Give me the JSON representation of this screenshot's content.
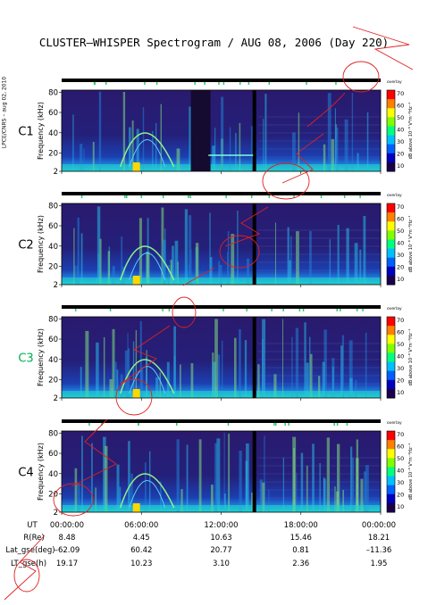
{
  "title": "CLUSTER–WHISPER Spectrogram / AUG 08, 2006 (Day 220)",
  "side_note": "LPCE/CNRS – aug 02, 2010",
  "ylabel": "Frequency (kHz)",
  "colorbar": {
    "label": "dB above 10⁻⁸ V²m⁻²Hz⁻¹",
    "top_note": "overlay",
    "ticks": [
      "70",
      "60",
      "50",
      "40",
      "30",
      "20",
      "10"
    ],
    "colors": [
      "#ff0000",
      "#ff7f00",
      "#ffff00",
      "#7fff00",
      "#00ff7f",
      "#00bfff",
      "#0060ff",
      "#0000c0",
      "#1a004a"
    ]
  },
  "panels": [
    {
      "label": "C1",
      "label_color": "#000000"
    },
    {
      "label": "C2",
      "label_color": "#000000"
    },
    {
      "label": "C3",
      "label_color": "#00b050"
    },
    {
      "label": "C4",
      "label_color": "#000000"
    }
  ],
  "ephemeris": {
    "rows": [
      {
        "label": "UT",
        "values": [
          "00:00:00",
          "06:00:00",
          "12:00:00",
          "18:00:00",
          "00:00:00"
        ]
      },
      {
        "label": "R(Re)",
        "values": [
          "8.48",
          "4.45",
          "10.63",
          "15.46",
          "18.21"
        ]
      },
      {
        "label": "Lat_gse(deg)",
        "values": [
          "–62.09",
          "60.42",
          "20.77",
          "0.81",
          "–11.36"
        ]
      },
      {
        "label": "LT_gse(h)",
        "values": [
          "19.17",
          "10.23",
          "3.10",
          "2.36",
          "1.95"
        ]
      }
    ]
  },
  "chart_data": [
    {
      "type": "heatmap",
      "spacecraft": "C1",
      "x": [
        "00:00:00",
        "06:00:00",
        "12:00:00",
        "18:00:00",
        "00:00:00"
      ],
      "y_ticks": [
        2,
        20,
        40,
        60,
        80
      ],
      "ylim": [
        2,
        82
      ],
      "zlim": [
        10,
        70
      ]
    },
    {
      "type": "heatmap",
      "spacecraft": "C2",
      "x": [
        "00:00:00",
        "06:00:00",
        "12:00:00",
        "18:00:00",
        "00:00:00"
      ],
      "y_ticks": [
        2,
        20,
        40,
        60,
        80
      ],
      "ylim": [
        2,
        82
      ],
      "zlim": [
        10,
        70
      ]
    },
    {
      "type": "heatmap",
      "spacecraft": "C3",
      "x": [
        "00:00:00",
        "06:00:00",
        "12:00:00",
        "18:00:00",
        "00:00:00"
      ],
      "y_ticks": [
        2,
        20,
        40,
        60,
        80
      ],
      "ylim": [
        2,
        82
      ],
      "zlim": [
        10,
        70
      ]
    },
    {
      "type": "heatmap",
      "spacecraft": "C4",
      "x": [
        "00:00:00",
        "06:00:00",
        "12:00:00",
        "18:00:00",
        "00:00:00"
      ],
      "y_ticks": [
        2,
        20,
        40,
        60,
        80
      ],
      "ylim": [
        2,
        82
      ],
      "zlim": [
        10,
        70
      ]
    }
  ]
}
